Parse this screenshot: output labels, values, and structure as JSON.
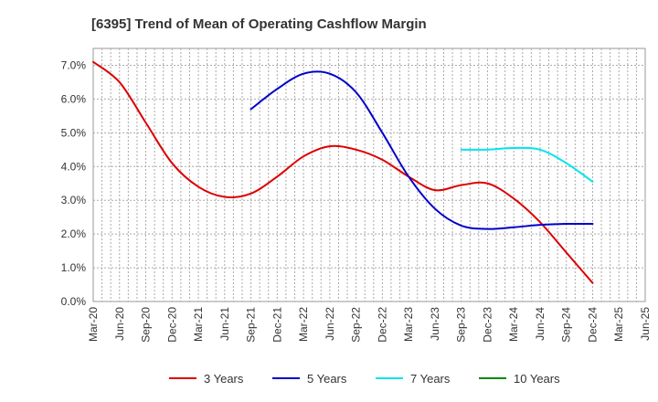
{
  "chart_data": {
    "type": "line",
    "title": "[6395]  Trend of Mean of Operating Cashflow Margin",
    "xlabel": "",
    "ylabel": "",
    "x": [
      "Mar-20",
      "Jun-20",
      "Sep-20",
      "Dec-20",
      "Mar-21",
      "Jun-21",
      "Sep-21",
      "Dec-21",
      "Mar-22",
      "Jun-22",
      "Sep-22",
      "Dec-22",
      "Mar-23",
      "Jun-23",
      "Sep-23",
      "Dec-23",
      "Mar-24",
      "Jun-24",
      "Sep-24",
      "Dec-24",
      "Mar-25",
      "Jun-25"
    ],
    "ylim": [
      0,
      7.5
    ],
    "yticks": [
      0,
      1,
      2,
      3,
      4,
      5,
      6,
      7
    ],
    "ytick_labels": [
      "0.0%",
      "1.0%",
      "2.0%",
      "3.0%",
      "4.0%",
      "5.0%",
      "6.0%",
      "7.0%"
    ],
    "grid": true,
    "legend_position": "bottom",
    "series": [
      {
        "name": "3 Years",
        "color": "#dd0000",
        "values": [
          7.1,
          6.5,
          5.3,
          4.1,
          3.4,
          3.1,
          3.2,
          3.7,
          4.3,
          4.6,
          4.5,
          4.2,
          3.7,
          3.3,
          3.45,
          3.5,
          3.05,
          2.35,
          1.45,
          0.55,
          null,
          null
        ]
      },
      {
        "name": "5 Years",
        "color": "#0000cc",
        "values": [
          null,
          null,
          null,
          null,
          null,
          null,
          5.7,
          6.3,
          6.75,
          6.75,
          6.2,
          5.0,
          3.7,
          2.75,
          2.25,
          2.15,
          2.2,
          2.27,
          2.3,
          2.3,
          null,
          null
        ]
      },
      {
        "name": "7 Years",
        "color": "#00e5ee",
        "values": [
          null,
          null,
          null,
          null,
          null,
          null,
          null,
          null,
          null,
          null,
          null,
          null,
          null,
          null,
          4.5,
          4.5,
          4.55,
          4.5,
          4.1,
          3.55,
          null,
          null
        ]
      },
      {
        "name": "10 Years",
        "color": "#008800",
        "values": [
          null,
          null,
          null,
          null,
          null,
          null,
          null,
          null,
          null,
          null,
          null,
          null,
          null,
          null,
          null,
          null,
          null,
          null,
          null,
          null,
          null,
          null
        ]
      }
    ]
  }
}
